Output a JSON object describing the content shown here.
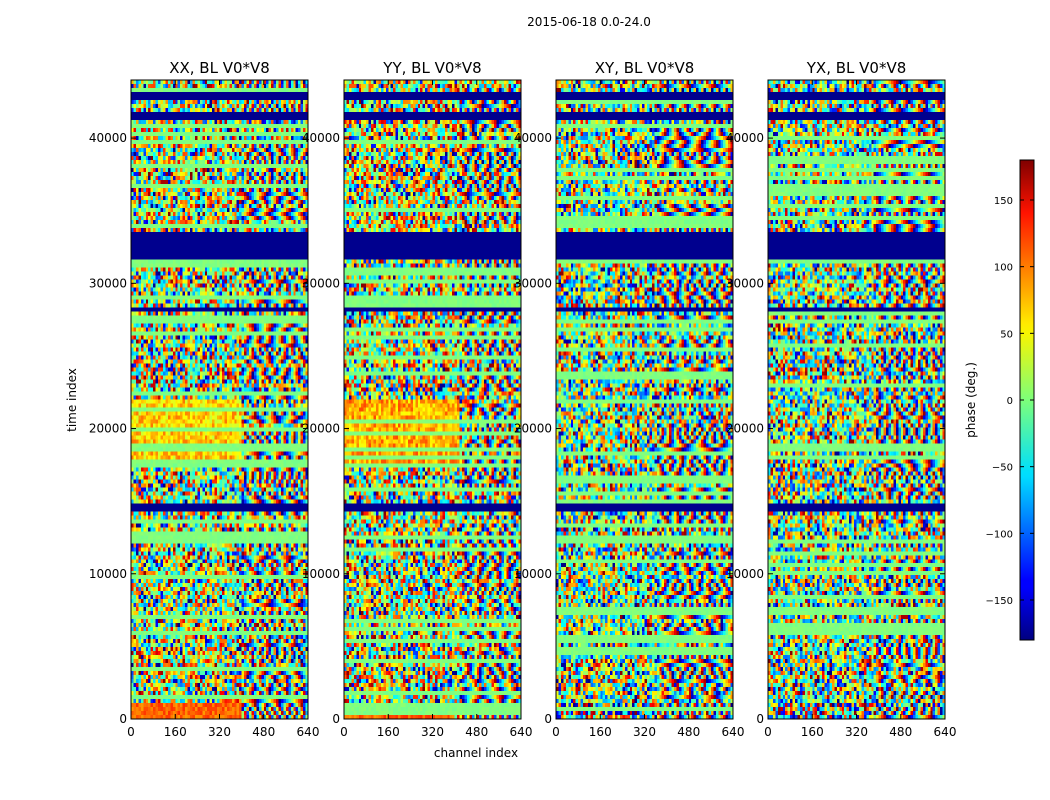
{
  "chart_data": {
    "type": "heatmap",
    "suptitle": "2015-06-18 0.0-24.0",
    "xlabel": "channel index",
    "ylabel": "time index",
    "xlim": [
      0,
      640
    ],
    "ylim": [
      0,
      44000
    ],
    "xticks": [
      0,
      160,
      320,
      480,
      640
    ],
    "yticks": [
      0,
      10000,
      20000,
      30000,
      40000
    ],
    "panels": [
      {
        "title": "XX, BL V0*V8",
        "baseline_phase": 60,
        "fringe_start": 400
      },
      {
        "title": "YY, BL V0*V8",
        "baseline_phase": 75,
        "fringe_start": 420
      },
      {
        "title": "XY, BL V0*V8",
        "baseline_phase": 0,
        "fringe_start": 360
      },
      {
        "title": "YX, BL V0*V8",
        "baseline_phase": 0,
        "fringe_start": 380
      }
    ],
    "colorbar": {
      "label": "phase (deg.)",
      "range": [
        -180,
        180
      ],
      "ticks": [
        -150,
        -100,
        -50,
        0,
        50,
        100,
        150
      ],
      "ticklabels": [
        "−150",
        "−100",
        "−50",
        "0",
        "50",
        "100",
        "150"
      ],
      "colormap": "jet"
    },
    "flagged_time_ranges": [
      [
        31500,
        33500
      ],
      [
        42500,
        43200
      ],
      [
        14200,
        14800
      ],
      [
        28000,
        28300
      ],
      [
        41200,
        41700
      ]
    ]
  }
}
